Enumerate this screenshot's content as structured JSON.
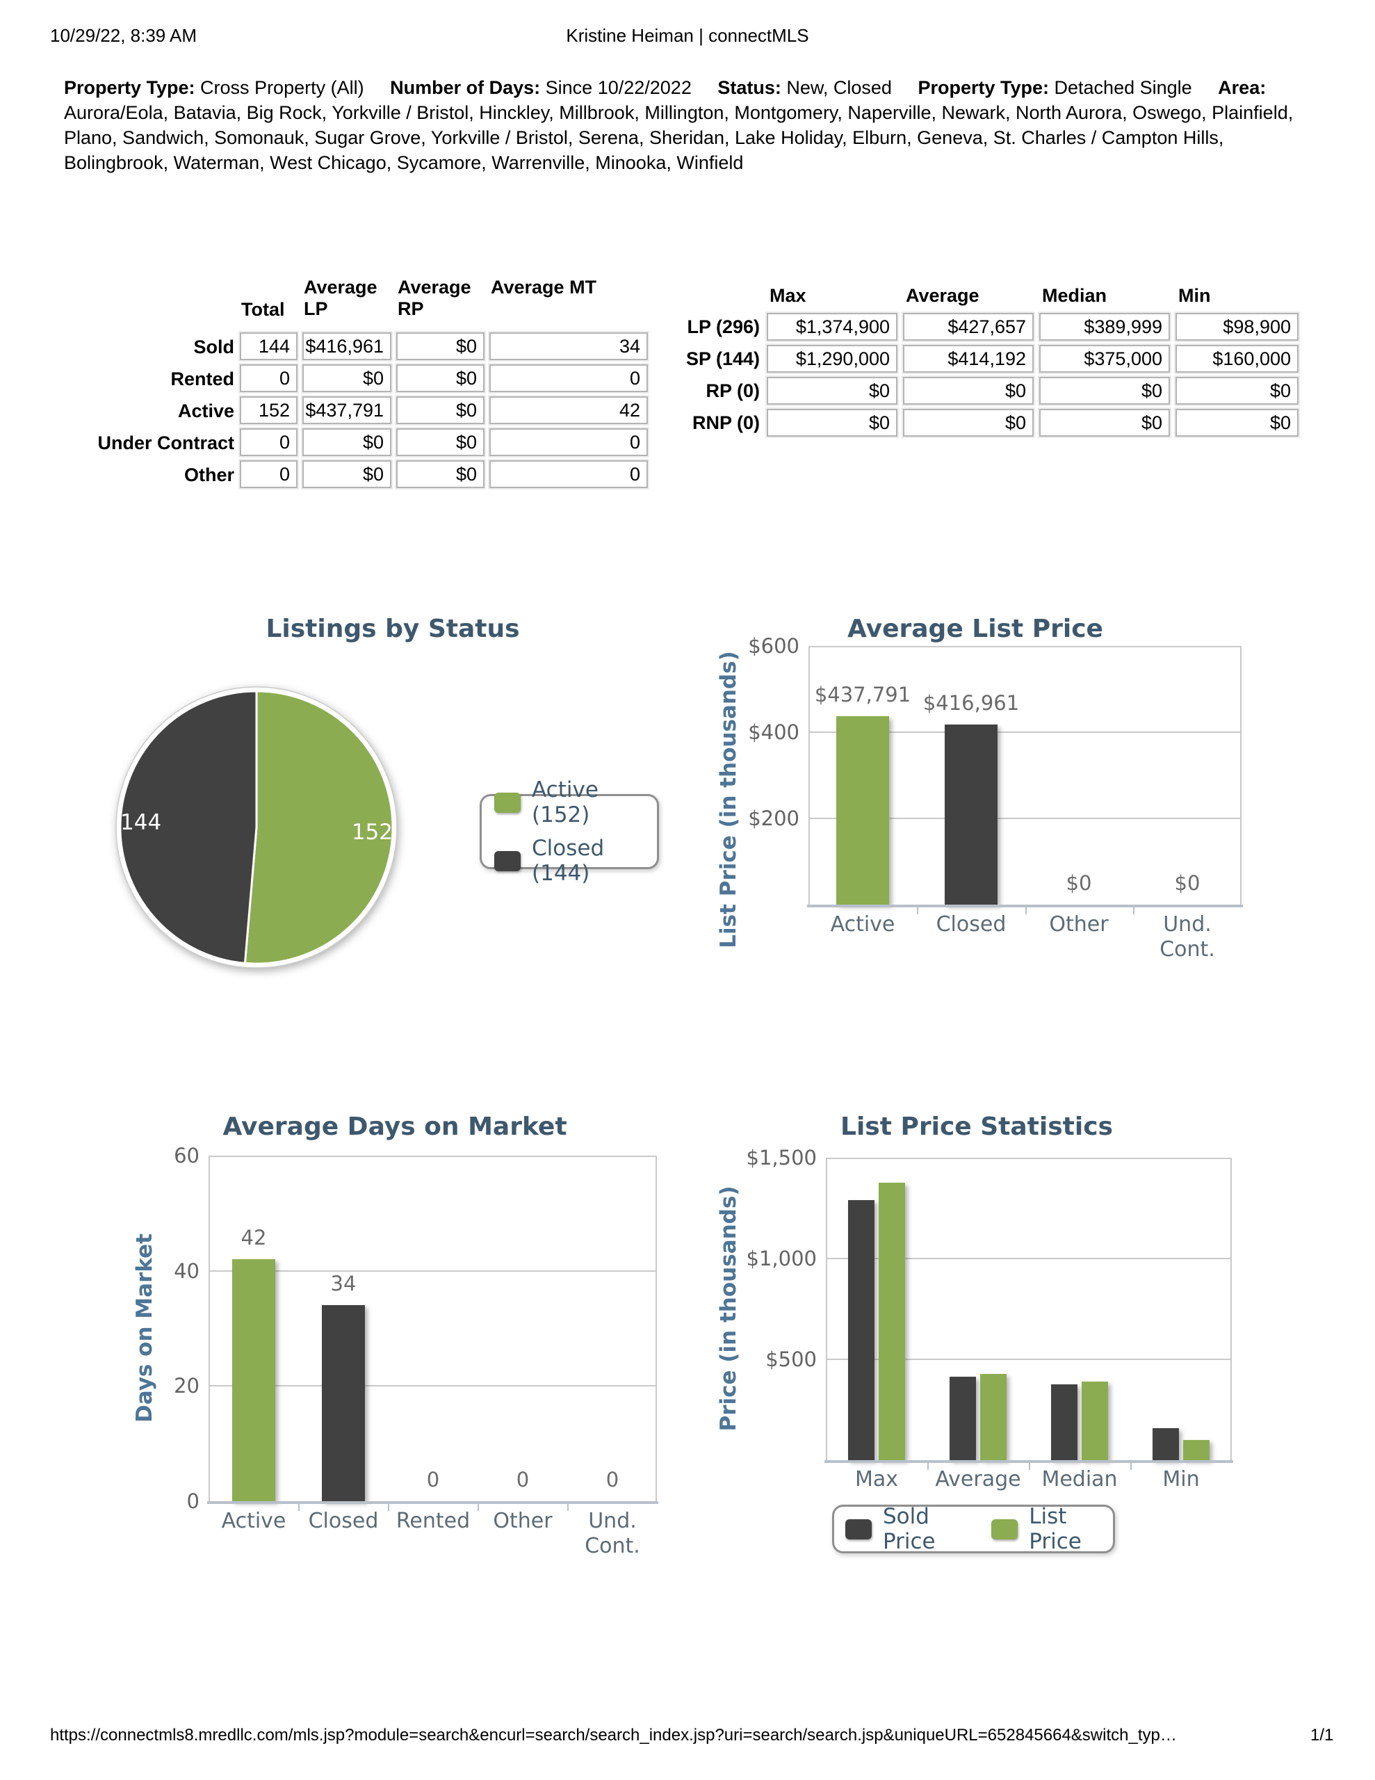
{
  "page": {
    "header_left": "10/29/22, 8:39 AM",
    "header_center": "Kristine Heiman | connectMLS",
    "footer_url": "https://connectmls8.mredllc.com/mls.jsp?module=search&encurl=search/search_index.jsp?uri=search/search.jsp&uniqueURL=652845664&switch_typ…",
    "footer_page": "1/1"
  },
  "criteria": {
    "segments": [
      {
        "label": "Property Type:",
        "value": "Cross Property (All)"
      },
      {
        "label": "Number of Days:",
        "value": "Since 10/22/2022"
      },
      {
        "label": "Status:",
        "value": "New, Closed"
      },
      {
        "label": "Property Type:",
        "value": "Detached Single"
      },
      {
        "label": "Area:",
        "value": "Aurora/Eola, Batavia, Big Rock, Yorkville / Bristol, Hinckley, Millbrook, Millington, Montgomery, Naperville, Newark, North Aurora, Oswego, Plainfield, Plano, Sandwich, Somonauk, Sugar Grove, Yorkville / Bristol, Serena, Sheridan, Lake Holiday, Elburn, Geneva, St. Charles / Campton Hills, Bolingbrook, Waterman, West Chicago, Sycamore, Warrenville, Minooka, Winfield"
      }
    ]
  },
  "status_table": {
    "col_headers": [
      "Total",
      "Average LP",
      "Average RP",
      "Average MT"
    ],
    "rows": [
      {
        "label": "Sold",
        "total": "144",
        "avg_lp": "$416,961",
        "avg_rp": "$0",
        "avg_mt": "34"
      },
      {
        "label": "Rented",
        "total": "0",
        "avg_lp": "$0",
        "avg_rp": "$0",
        "avg_mt": "0"
      },
      {
        "label": "Active",
        "total": "152",
        "avg_lp": "$437,791",
        "avg_rp": "$0",
        "avg_mt": "42"
      },
      {
        "label": "Under Contract",
        "total": "0",
        "avg_lp": "$0",
        "avg_rp": "$0",
        "avg_mt": "0"
      },
      {
        "label": "Other",
        "total": "0",
        "avg_lp": "$0",
        "avg_rp": "$0",
        "avg_mt": "0"
      }
    ]
  },
  "price_table": {
    "col_headers": [
      "Max",
      "Average",
      "Median",
      "Min"
    ],
    "rows": [
      {
        "label": "LP (296)",
        "max": "$1,374,900",
        "average": "$427,657",
        "median": "$389,999",
        "min": "$98,900"
      },
      {
        "label": "SP (144)",
        "max": "$1,290,000",
        "average": "$414,192",
        "median": "$375,000",
        "min": "$160,000"
      },
      {
        "label": "RP (0)",
        "max": "$0",
        "average": "$0",
        "median": "$0",
        "min": "$0"
      },
      {
        "label": "RNP (0)",
        "max": "$0",
        "average": "$0",
        "median": "$0",
        "min": "$0"
      }
    ]
  },
  "colors": {
    "green": "#8CAC51",
    "dark": "#414141",
    "slate": "#3E586D",
    "axis_blue": "#4E7596",
    "tick_gray": "#636363",
    "xlabel_gray": "#5C6B76",
    "datalabel_gray": "#6A6A6A",
    "plot_border": "#C9C9C9",
    "axis_line": "#B8C0CA",
    "box_border": "#B4B4B4",
    "pie_label_white": "#FFFFFF"
  },
  "chart_data": [
    {
      "type": "pie",
      "title": "Listings by Status",
      "slices": [
        {
          "label": "Active",
          "value": 152,
          "color": "green",
          "data_label": "152"
        },
        {
          "label": "Closed",
          "value": 144,
          "color": "dark",
          "data_label": "144"
        }
      ],
      "legend": [
        "Active (152)",
        "Closed (144)"
      ],
      "legend_position": "right"
    },
    {
      "type": "bar",
      "title": "Average List Price",
      "xlabel": "",
      "ylabel": "List Price (in thousands)",
      "ylim": [
        0,
        600
      ],
      "yticks": [
        {
          "value": 600,
          "label": "$600"
        },
        {
          "value": 400,
          "label": "$400"
        },
        {
          "value": 200,
          "label": "$200"
        }
      ],
      "gridlines": [
        400,
        200
      ],
      "categories": [
        "Active",
        "Closed",
        "Other",
        "Und.\nCont."
      ],
      "values": [
        437.791,
        416.961,
        0,
        0
      ],
      "bar_labels": [
        "$437,791",
        "$416,961",
        "$0",
        "$0"
      ],
      "bar_colors": [
        "green",
        "dark",
        "green",
        "green"
      ]
    },
    {
      "type": "bar",
      "title": "Average Days on Market",
      "xlabel": "",
      "ylabel": "Days on Market",
      "ylim": [
        0,
        60
      ],
      "yticks": [
        {
          "value": 60,
          "label": "60"
        },
        {
          "value": 40,
          "label": "40"
        },
        {
          "value": 20,
          "label": "20"
        },
        {
          "value": 0,
          "label": "0"
        }
      ],
      "gridlines": [
        40,
        20
      ],
      "categories": [
        "Active",
        "Closed",
        "Rented",
        "Other",
        "Und.\nCont."
      ],
      "values": [
        42,
        34,
        0,
        0,
        0
      ],
      "bar_labels": [
        "42",
        "34",
        "0",
        "0",
        "0"
      ],
      "bar_colors": [
        "green",
        "dark",
        "green",
        "green",
        "green"
      ]
    },
    {
      "type": "grouped_bar",
      "title": "List Price Statistics",
      "xlabel": "",
      "ylabel": "Price (in thousands)",
      "ylim": [
        0,
        1500
      ],
      "yticks": [
        {
          "value": 1500,
          "label": "$1,500"
        },
        {
          "value": 1000,
          "label": "$1,000"
        },
        {
          "value": 500,
          "label": "$500"
        }
      ],
      "gridlines": [
        1000,
        500
      ],
      "categories": [
        "Max",
        "Average",
        "Median",
        "Min"
      ],
      "series": [
        {
          "name": "Sold Price",
          "color": "dark",
          "values": [
            1290,
            414.192,
            375,
            160
          ]
        },
        {
          "name": "List Price",
          "color": "green",
          "values": [
            1374.9,
            427.657,
            389.999,
            98.9
          ]
        }
      ],
      "legend": [
        "Sold Price",
        "List Price"
      ],
      "legend_position": "bottom"
    }
  ]
}
